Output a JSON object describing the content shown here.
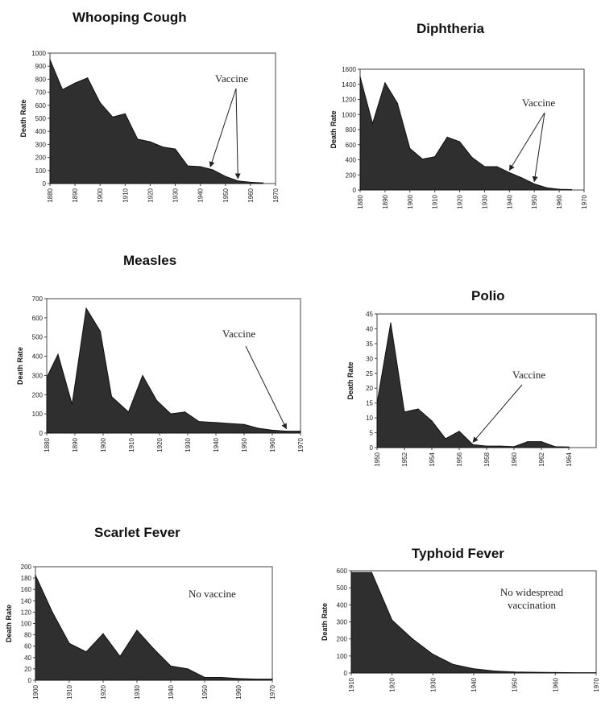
{
  "chart_data": [
    {
      "type": "area",
      "title": "Whooping Cough",
      "ylabel": "Death Rate",
      "xlabel": "",
      "ylim": [
        0,
        1000
      ],
      "yticks": [
        0,
        100,
        200,
        300,
        400,
        500,
        600,
        700,
        800,
        900,
        1000
      ],
      "xlim": [
        1880,
        1970
      ],
      "xticks": [
        1880,
        1890,
        1900,
        1910,
        1920,
        1930,
        1940,
        1950,
        1960,
        1970
      ],
      "x": [
        1880,
        1885,
        1890,
        1895,
        1900,
        1905,
        1910,
        1915,
        1920,
        1925,
        1930,
        1935,
        1940,
        1945,
        1950,
        1955,
        1960,
        1965
      ],
      "values": [
        950,
        720,
        770,
        810,
        620,
        510,
        535,
        340,
        320,
        280,
        265,
        135,
        130,
        105,
        55,
        20,
        10,
        5
      ],
      "annotation": "Vaccine",
      "arrow_targets": [
        1944,
        1955
      ]
    },
    {
      "type": "area",
      "title": "Diphtheria",
      "ylabel": "Death Rate",
      "xlabel": "",
      "ylim": [
        0,
        1600
      ],
      "yticks": [
        0,
        200,
        400,
        600,
        800,
        1000,
        1200,
        1400,
        1600
      ],
      "xlim": [
        1880,
        1970
      ],
      "xticks": [
        1880,
        1890,
        1900,
        1910,
        1920,
        1930,
        1940,
        1950,
        1960,
        1970
      ],
      "x": [
        1880,
        1885,
        1890,
        1895,
        1900,
        1905,
        1910,
        1915,
        1920,
        1925,
        1930,
        1935,
        1940,
        1945,
        1950,
        1955,
        1960,
        1965
      ],
      "values": [
        1500,
        880,
        1420,
        1150,
        550,
        410,
        440,
        700,
        640,
        430,
        310,
        310,
        230,
        160,
        80,
        30,
        10,
        5
      ],
      "annotation": "Vaccine",
      "arrow_targets": [
        1940,
        1950
      ]
    },
    {
      "type": "area",
      "title": "Measles",
      "ylabel": "Death Rate",
      "xlabel": "",
      "ylim": [
        0,
        700
      ],
      "yticks": [
        0,
        100,
        200,
        300,
        400,
        500,
        600,
        700
      ],
      "xlim": [
        1880,
        1970
      ],
      "xticks": [
        1880,
        1890,
        1900,
        1910,
        1920,
        1930,
        1940,
        1950,
        1960,
        1970
      ],
      "x": [
        1880,
        1884,
        1889,
        1894,
        1899,
        1903,
        1909,
        1914,
        1919,
        1924,
        1929,
        1934,
        1940,
        1945,
        1950,
        1955,
        1960,
        1965,
        1970
      ],
      "values": [
        290,
        410,
        150,
        650,
        530,
        190,
        110,
        300,
        170,
        100,
        110,
        60,
        55,
        50,
        45,
        25,
        15,
        10,
        10
      ],
      "annotation": "Vaccine",
      "arrow_targets": [
        1965
      ]
    },
    {
      "type": "area",
      "title": "Polio",
      "ylabel": "Death Rate",
      "xlabel": "",
      "ylim": [
        0,
        45
      ],
      "yticks": [
        0,
        5,
        10,
        15,
        20,
        25,
        30,
        35,
        40,
        45
      ],
      "xlim": [
        1950,
        1966
      ],
      "xticks": [
        1950,
        1952,
        1954,
        1956,
        1958,
        1960,
        1962,
        1964
      ],
      "x": [
        1950,
        1951,
        1952,
        1953,
        1954,
        1955,
        1956,
        1957,
        1958,
        1959,
        1960,
        1961,
        1962,
        1963,
        1964
      ],
      "values": [
        15,
        42,
        12,
        13,
        9,
        3,
        5.5,
        1,
        0.5,
        0.5,
        0.3,
        2,
        2,
        0.3,
        0.2
      ],
      "annotation": "Vaccine",
      "arrow_targets": [
        1957
      ]
    },
    {
      "type": "area",
      "title": "Scarlet Fever",
      "ylabel": "Death Rate",
      "xlabel": "",
      "ylim": [
        0,
        200
      ],
      "yticks": [
        0,
        20,
        40,
        60,
        80,
        100,
        120,
        140,
        160,
        180,
        200
      ],
      "xlim": [
        1900,
        1970
      ],
      "xticks": [
        1900,
        1910,
        1920,
        1930,
        1940,
        1950,
        1960,
        1970
      ],
      "x": [
        1900,
        1905,
        1910,
        1915,
        1920,
        1925,
        1930,
        1935,
        1940,
        1945,
        1950,
        1955,
        1960,
        1965,
        1970
      ],
      "values": [
        185,
        120,
        65,
        50,
        82,
        42,
        88,
        55,
        25,
        20,
        5,
        5,
        3,
        2,
        2
      ],
      "annotation": "No vaccine",
      "arrow_targets": []
    },
    {
      "type": "area",
      "title": "Typhoid Fever",
      "ylabel": "Death Rate",
      "xlabel": "",
      "ylim": [
        0,
        600
      ],
      "yticks": [
        0,
        100,
        200,
        300,
        400,
        500,
        600
      ],
      "xlim": [
        1910,
        1970
      ],
      "xticks": [
        1910,
        1920,
        1930,
        1940,
        1950,
        1960,
        1970
      ],
      "x": [
        1910,
        1915,
        1920,
        1925,
        1930,
        1935,
        1940,
        1945,
        1950,
        1955,
        1960,
        1965,
        1970
      ],
      "values": [
        590,
        590,
        310,
        200,
        110,
        50,
        25,
        12,
        6,
        4,
        3,
        2,
        2
      ],
      "annotation": "No widespread vaccination",
      "annotation_lines": [
        "No widespread",
        "vaccination"
      ],
      "arrow_targets": []
    }
  ]
}
